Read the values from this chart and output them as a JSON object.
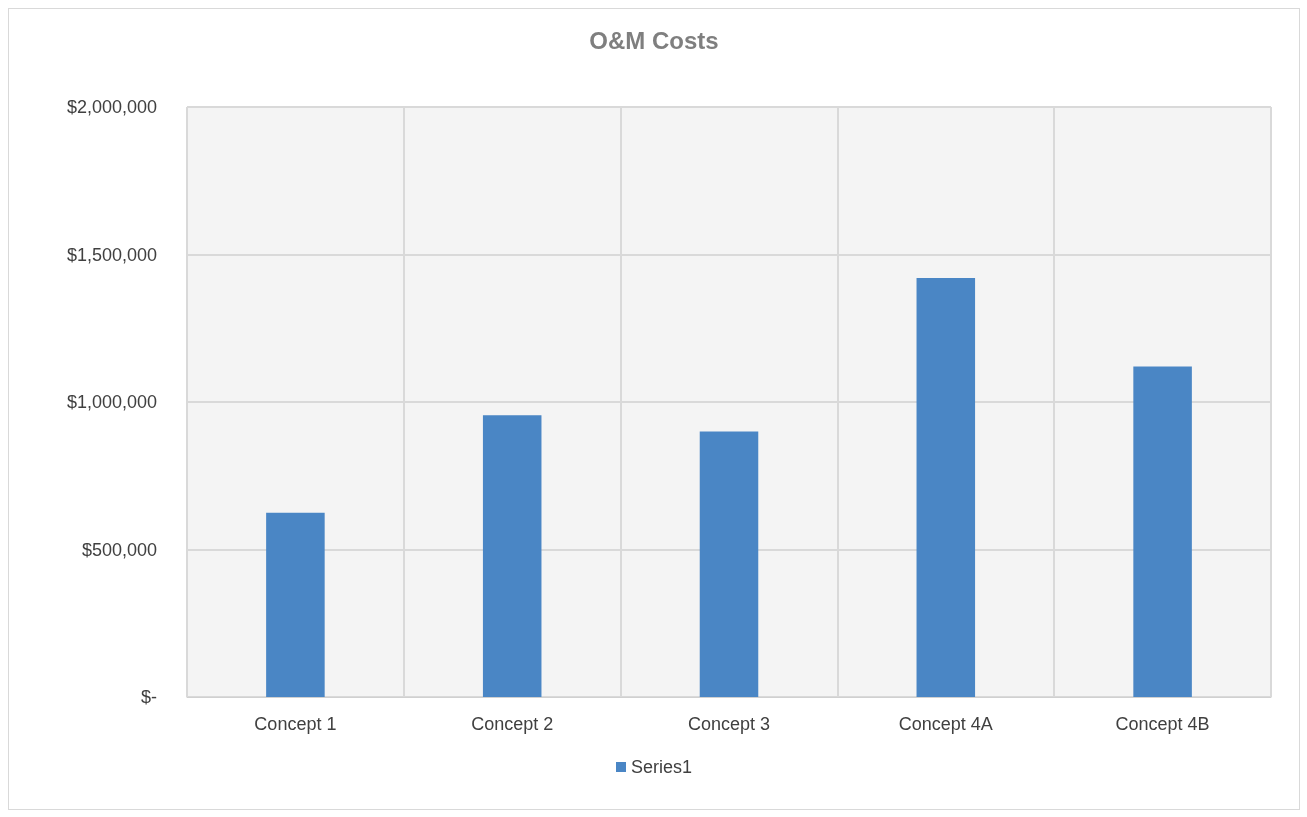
{
  "chart_data": {
    "type": "bar",
    "title": "O&M Costs",
    "categories": [
      "Concept 1",
      "Concept 2",
      "Concept 3",
      "Concept 4A",
      "Concept 4B"
    ],
    "series": [
      {
        "name": "Series1",
        "color": "#4a86c5",
        "values": [
          625000,
          955000,
          900000,
          1420000,
          1120000
        ]
      }
    ],
    "ylim": [
      0,
      2000000
    ],
    "yticks": [
      {
        "value": 0,
        "label": "$-"
      },
      {
        "value": 500000,
        "label": "$500,000"
      },
      {
        "value": 1000000,
        "label": "$1,000,000"
      },
      {
        "value": 1500000,
        "label": "$1,500,000"
      },
      {
        "value": 2000000,
        "label": "$2,000,000"
      }
    ],
    "grid": true,
    "legend": "bottom"
  }
}
